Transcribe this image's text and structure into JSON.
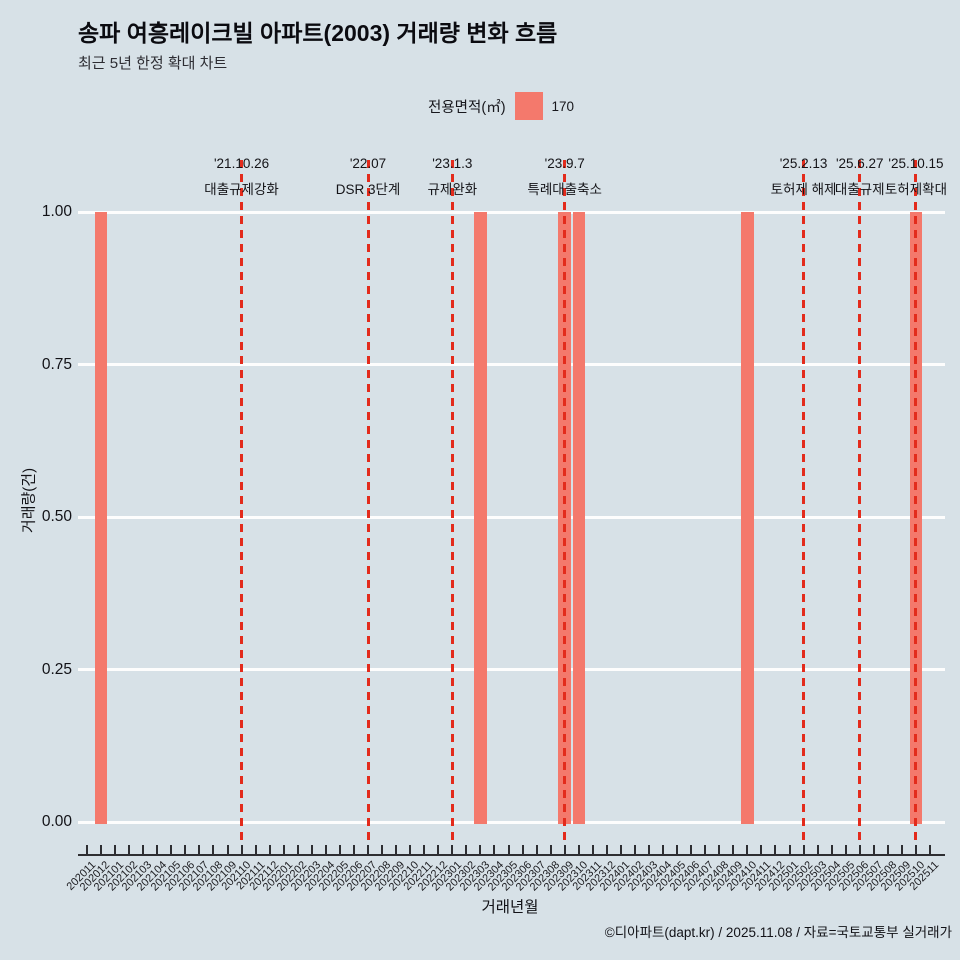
{
  "header": {
    "title": "송파 여흥레이크빌 아파트(2003) 거래량 변화 흐름",
    "subtitle": "최근 5년 한정 확대 차트"
  },
  "legend": {
    "label": "전용면적(㎡)",
    "value": "170",
    "swatch_color": "#f4796c"
  },
  "footer": {
    "credit": "©디아파트(dapt.kr) / 2025.11.08 / 자료=국토교통부 실거래가"
  },
  "colors": {
    "background": "#d7e1e7",
    "bar": "#f4796c",
    "event_line": "#e32b1c",
    "gridline": "#fdfdfd",
    "axis": "#2e2e32"
  },
  "chart_data": {
    "type": "bar",
    "title": "송파 여흥레이크빌 아파트(2003) 거래량 변화 흐름",
    "subtitle": "최근 5년 한정 확대 차트",
    "xlabel": "거래년월",
    "ylabel": "거래량(건)",
    "ylim": [
      0,
      1
    ],
    "y_ticks": [
      "0.00",
      "0.25",
      "0.50",
      "0.75",
      "1.00"
    ],
    "grid": "horizontal-white",
    "legend_position": "top-center",
    "series_name": "170",
    "categories": [
      "202011",
      "202012",
      "202101",
      "202102",
      "202103",
      "202104",
      "202105",
      "202106",
      "202107",
      "202108",
      "202109",
      "202110",
      "202111",
      "202112",
      "202201",
      "202202",
      "202203",
      "202204",
      "202205",
      "202206",
      "202207",
      "202208",
      "202209",
      "202210",
      "202211",
      "202212",
      "202301",
      "202302",
      "202303",
      "202304",
      "202305",
      "202306",
      "202307",
      "202308",
      "202309",
      "202310",
      "202311",
      "202312",
      "202401",
      "202402",
      "202403",
      "202404",
      "202405",
      "202406",
      "202407",
      "202408",
      "202409",
      "202410",
      "202411",
      "202412",
      "202501",
      "202502",
      "202503",
      "202504",
      "202505",
      "202506",
      "202507",
      "202508",
      "202509",
      "202510",
      "202511"
    ],
    "values": [
      0,
      1,
      0,
      0,
      0,
      0,
      0,
      0,
      0,
      0,
      0,
      0,
      0,
      0,
      0,
      0,
      0,
      0,
      0,
      0,
      0,
      0,
      0,
      0,
      0,
      0,
      0,
      0,
      1,
      0,
      0,
      0,
      0,
      0,
      1,
      1,
      0,
      0,
      0,
      0,
      0,
      0,
      0,
      0,
      0,
      0,
      0,
      1,
      0,
      0,
      0,
      0,
      0,
      0,
      0,
      0,
      0,
      0,
      0,
      1,
      0
    ],
    "events": [
      {
        "date": "'21.10.26",
        "label": "대출규제강화",
        "month": "202110"
      },
      {
        "date": "'22.07",
        "label": "DSR 3단계",
        "month": "202207"
      },
      {
        "date": "'23.1.3",
        "label": "규제완화",
        "month": "202301"
      },
      {
        "date": "'23.9.7",
        "label": "특례대출축소",
        "month": "202309"
      },
      {
        "date": "'25.2.13",
        "label": "토허제 해제",
        "month": "202502"
      },
      {
        "date": "'25.6.27",
        "label": "대출규제",
        "month": "202506"
      },
      {
        "date": "'25.10.15",
        "label": "토허제확대",
        "month": "202510"
      }
    ]
  }
}
